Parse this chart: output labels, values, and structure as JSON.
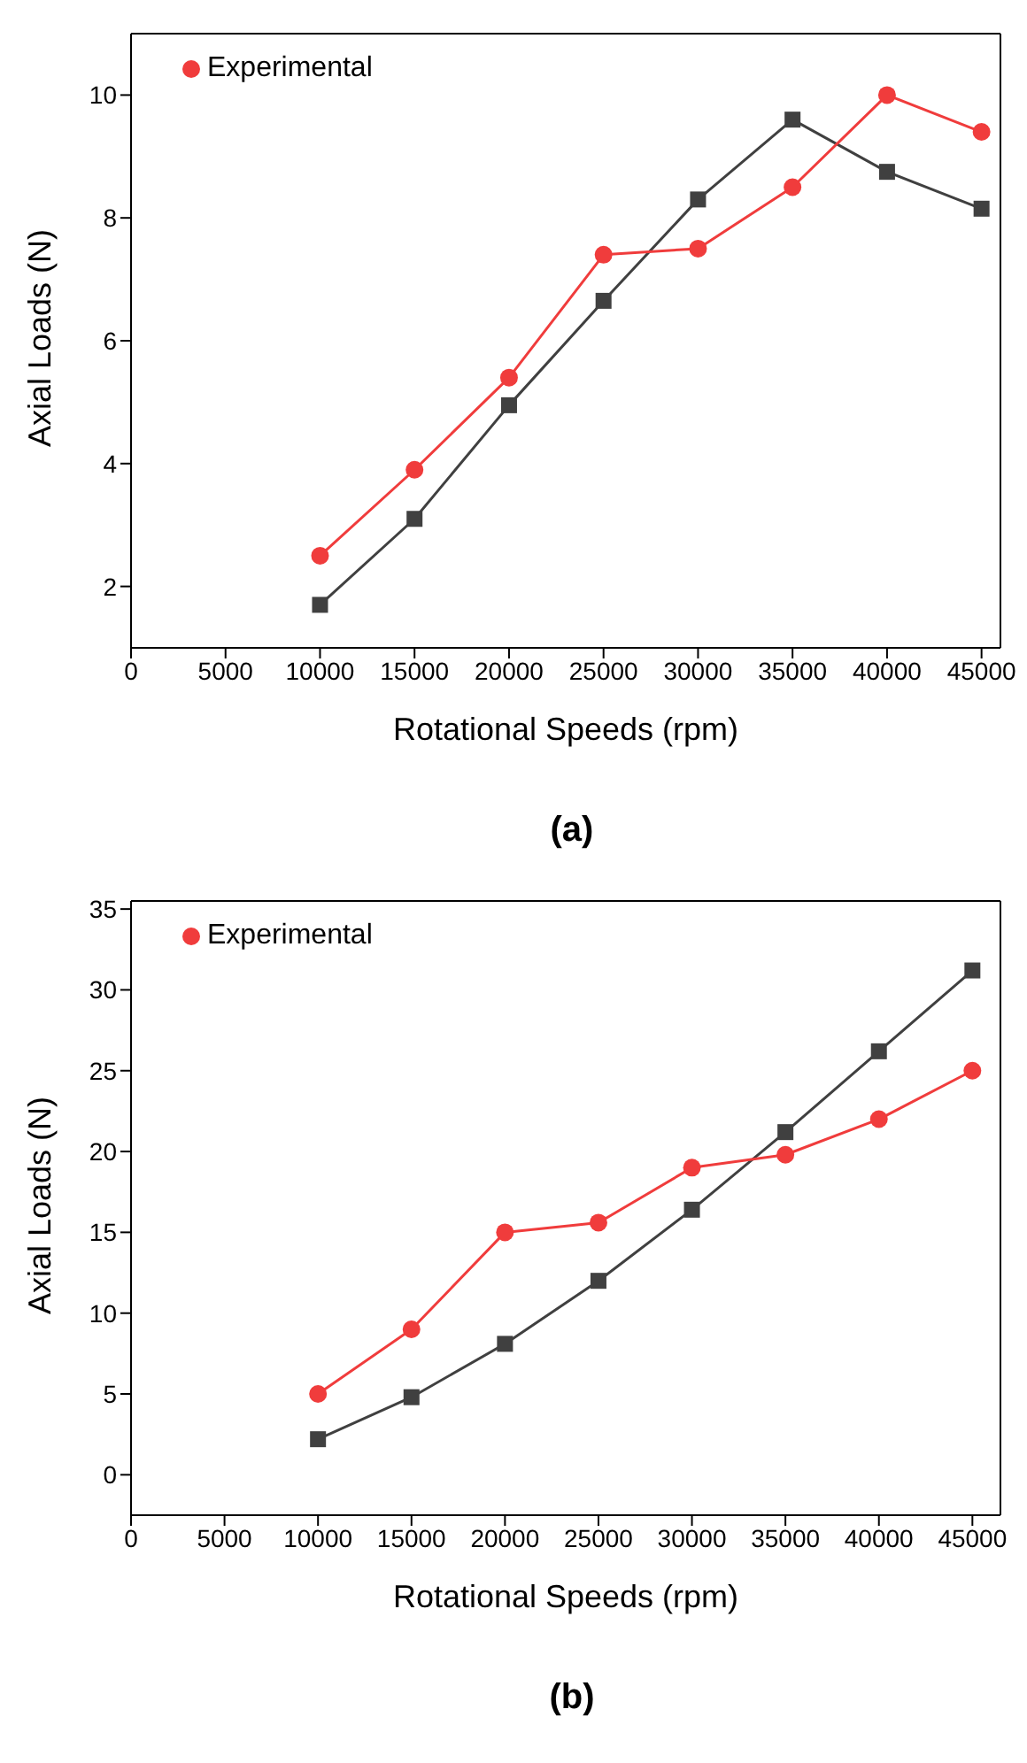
{
  "chart_data": [
    {
      "type": "line",
      "xlabel": "Rotational Speeds (rpm)",
      "ylabel": "Axial Loads (N)",
      "annotations": [
        "(a)"
      ],
      "x": [
        10000,
        15000,
        20000,
        25000,
        30000,
        35000,
        40000,
        45000
      ],
      "series": [
        {
          "color": "#404040",
          "marker": "square",
          "values": [
            1.7,
            3.1,
            4.95,
            6.65,
            8.3,
            9.6,
            8.75,
            8.15
          ]
        },
        {
          "name": "Experimental",
          "color": "#f03c3c",
          "marker": "circle",
          "values": [
            2.5,
            3.9,
            5.4,
            7.4,
            7.5,
            8.5,
            10.0,
            9.4
          ]
        }
      ],
      "xlim": [
        0,
        46000
      ],
      "xticks": [
        0,
        5000,
        10000,
        15000,
        20000,
        25000,
        30000,
        35000,
        40000,
        45000
      ],
      "ylim": [
        1,
        11
      ],
      "yticks": [
        2,
        4,
        6,
        8,
        10
      ],
      "grid": false,
      "legend": "top left"
    },
    {
      "type": "line",
      "xlabel": "Rotational Speeds (rpm)",
      "ylabel": "Axial Loads (N)",
      "annotations": [
        "(b)"
      ],
      "x": [
        10000,
        15000,
        20000,
        25000,
        30000,
        35000,
        40000,
        45000
      ],
      "series": [
        {
          "color": "#404040",
          "marker": "square",
          "values": [
            2.2,
            4.8,
            8.1,
            12.0,
            16.4,
            21.2,
            26.2,
            31.2
          ]
        },
        {
          "name": "Experimental",
          "color": "#f03c3c",
          "marker": "circle",
          "values": [
            5.0,
            9.0,
            15.0,
            15.6,
            19.0,
            19.8,
            22.0,
            25.0
          ]
        }
      ],
      "xlim": [
        0,
        46500
      ],
      "xticks": [
        0,
        5000,
        10000,
        15000,
        20000,
        25000,
        30000,
        35000,
        40000,
        45000
      ],
      "ylim": [
        -2.5,
        35.5
      ],
      "yticks": [
        0,
        5,
        10,
        15,
        20,
        25,
        30,
        35
      ],
      "grid": false,
      "legend": "top left"
    }
  ]
}
